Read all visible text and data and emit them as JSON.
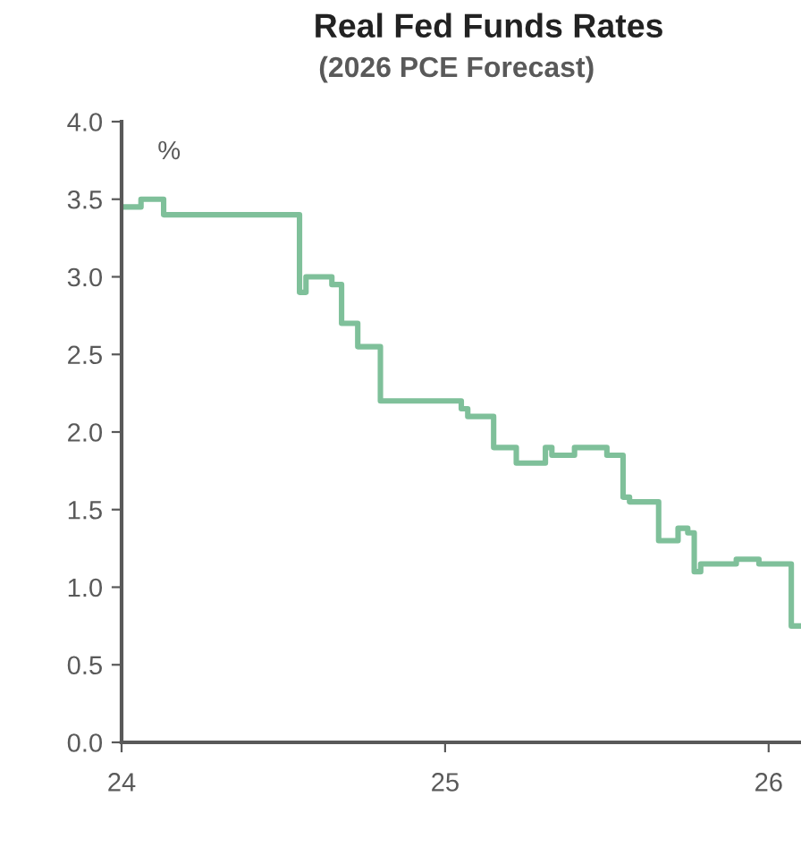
{
  "chart_data": {
    "type": "step",
    "title": "Real Fed Funds Rates",
    "subtitle": "(2026 PCE Forecast)",
    "ylabel": "%",
    "x": [
      24.0,
      24.06,
      24.13,
      24.55,
      24.57,
      24.65,
      24.68,
      24.73,
      24.8,
      25.05,
      25.07,
      25.15,
      25.22,
      25.31,
      25.33,
      25.4,
      25.5,
      25.55,
      25.57,
      25.66,
      25.72,
      25.75,
      25.77,
      25.79,
      25.9,
      25.97,
      26.07,
      26.1
    ],
    "series": [
      {
        "color": "#7fc09a",
        "values": [
          3.45,
          3.5,
          3.4,
          2.9,
          3.0,
          2.95,
          2.7,
          2.55,
          2.2,
          2.15,
          2.1,
          1.9,
          1.8,
          1.9,
          1.85,
          1.9,
          1.85,
          1.58,
          1.55,
          1.3,
          1.38,
          1.35,
          1.1,
          1.15,
          1.18,
          1.15,
          0.75,
          0.75
        ]
      }
    ],
    "xlim": [
      24,
      26.1
    ],
    "xticks": [
      24,
      25,
      26
    ],
    "ylim": [
      0,
      4
    ],
    "yticks": [
      {
        "value": 0,
        "label": "0.0"
      },
      {
        "value": 0.5,
        "label": "0.5"
      },
      {
        "value": 1,
        "label": "1.0"
      },
      {
        "value": 1.5,
        "label": "1.5"
      },
      {
        "value": 2,
        "label": "2.0"
      },
      {
        "value": 2.5,
        "label": "2.5"
      },
      {
        "value": 3,
        "label": "3.0"
      },
      {
        "value": 3.5,
        "label": "3.5"
      },
      {
        "value": 4,
        "label": "4.0"
      }
    ],
    "grid": false,
    "legend": false
  }
}
